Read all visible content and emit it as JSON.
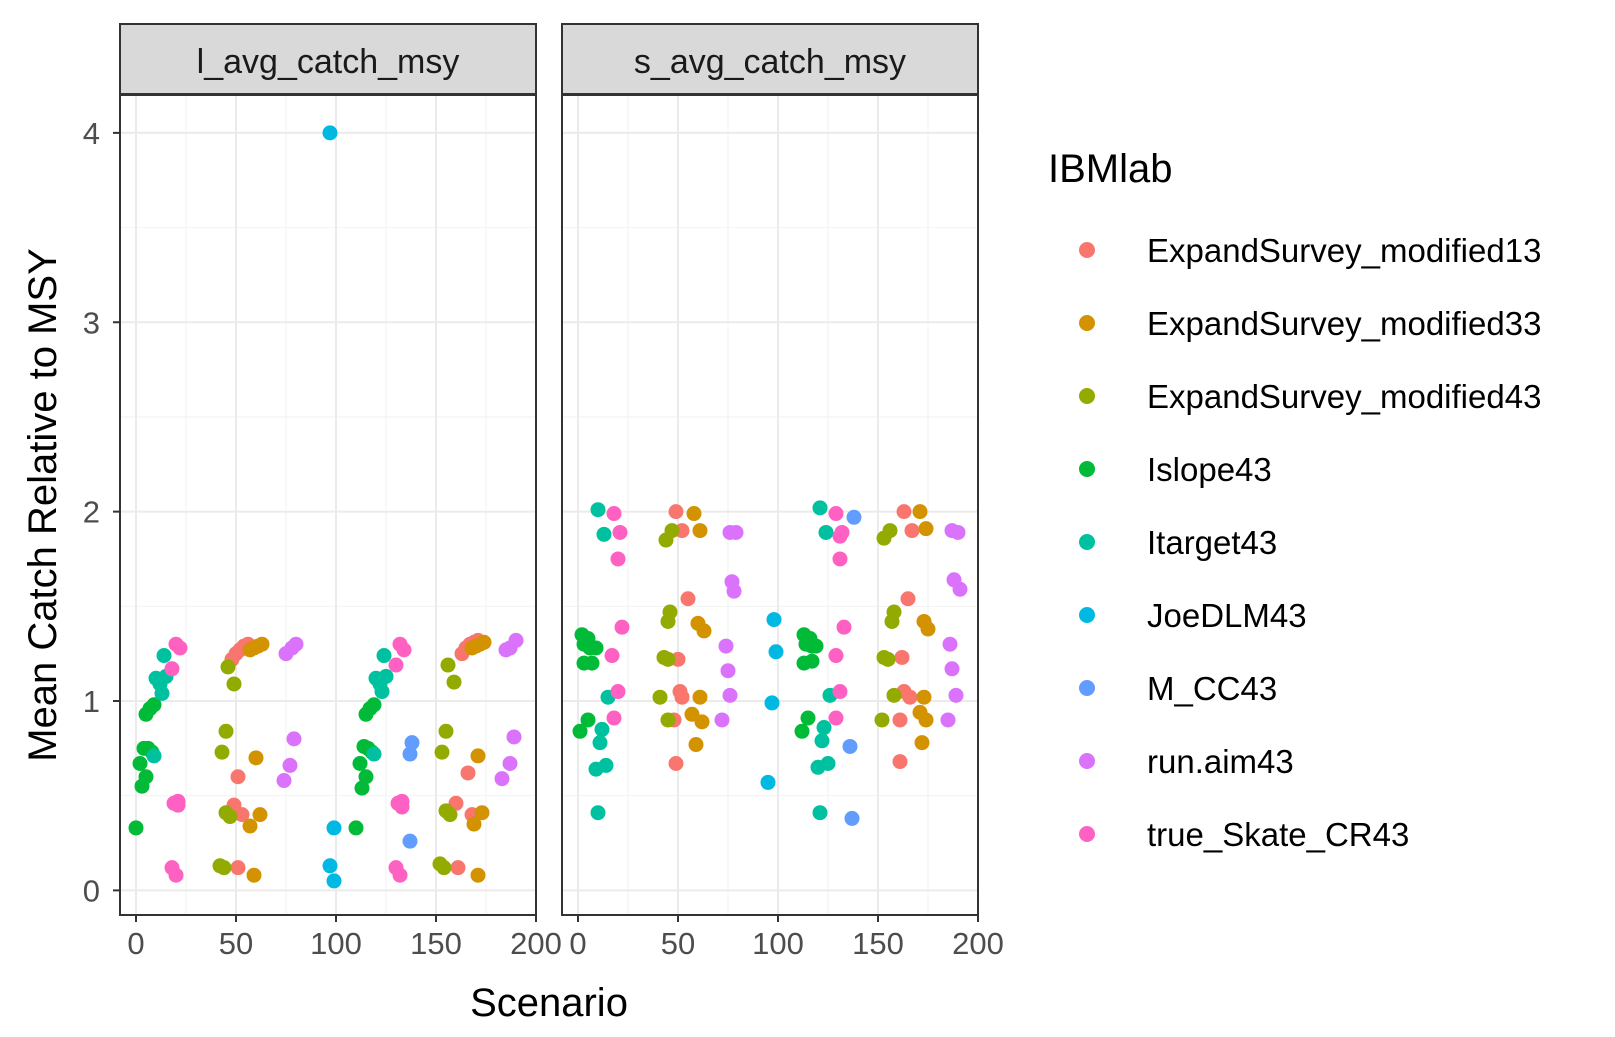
{
  "chart_data": {
    "type": "scatter",
    "xlabel": "Scenario",
    "ylabel": "Mean Catch Relative to MSY",
    "xlim": [
      -8,
      200
    ],
    "ylim": [
      -0.13,
      4.2
    ],
    "x_ticks": [
      0,
      50,
      100,
      150,
      200
    ],
    "x_tick_labels": [
      "0",
      "50",
      "100",
      "150",
      "200"
    ],
    "y_ticks": [
      0,
      1,
      2,
      3,
      4
    ],
    "y_tick_labels": [
      "0",
      "1",
      "2",
      "3",
      "4"
    ],
    "grid": true,
    "facets": [
      "l_avg_catch_msy",
      "s_avg_catch_msy"
    ],
    "legend": {
      "title": "IBMlab",
      "position": "right",
      "entries": [
        {
          "name": "ExpandSurvey_modified13",
          "color": "#F8766D"
        },
        {
          "name": "ExpandSurvey_modified33",
          "color": "#D39200"
        },
        {
          "name": "ExpandSurvey_modified43",
          "color": "#93AA00"
        },
        {
          "name": "Islope43",
          "color": "#00BA38"
        },
        {
          "name": "Itarget43",
          "color": "#00C19F"
        },
        {
          "name": "JoeDLM43",
          "color": "#00B9E3"
        },
        {
          "name": "M_CC43",
          "color": "#619CFF"
        },
        {
          "name": "run.aim43",
          "color": "#DB72FB"
        },
        {
          "name": "true_Skate_CR43",
          "color": "#FF61C3"
        }
      ]
    },
    "series": [
      {
        "name": "ExpandSurvey_modified13",
        "facet": "l_avg_catch_msy",
        "x": [
          48,
          50,
          52,
          54,
          56,
          51,
          53,
          49,
          51,
          163,
          165,
          167,
          169,
          171,
          166,
          160,
          168,
          161
        ],
        "y": [
          1.22,
          1.25,
          1.27,
          1.29,
          1.3,
          0.6,
          0.4,
          0.45,
          0.12,
          1.25,
          1.28,
          1.3,
          1.31,
          1.32,
          0.62,
          0.46,
          0.4,
          0.12
        ]
      },
      {
        "name": "ExpandSurvey_modified33",
        "facet": "l_avg_catch_msy",
        "x": [
          57,
          59,
          61,
          63,
          60,
          62,
          57,
          59,
          168,
          170,
          172,
          174,
          171,
          173,
          169,
          171
        ],
        "y": [
          1.27,
          1.28,
          1.29,
          1.3,
          0.7,
          0.4,
          0.34,
          0.08,
          1.28,
          1.29,
          1.3,
          1.31,
          0.71,
          0.41,
          0.35,
          0.08
        ]
      },
      {
        "name": "ExpandSurvey_modified43",
        "facet": "l_avg_catch_msy",
        "x": [
          46,
          49,
          43,
          45,
          45,
          47,
          42,
          44,
          156,
          159,
          153,
          155,
          155,
          157,
          152,
          154
        ],
        "y": [
          1.18,
          1.09,
          0.73,
          0.84,
          0.41,
          0.39,
          0.13,
          0.12,
          1.19,
          1.1,
          0.73,
          0.84,
          0.42,
          0.4,
          0.14,
          0.12
        ]
      },
      {
        "name": "Islope43",
        "facet": "l_avg_catch_msy",
        "x": [
          5,
          7,
          9,
          4,
          6,
          8,
          2,
          5,
          3,
          0,
          115,
          117,
          119,
          114,
          116,
          118,
          112,
          115,
          113,
          110
        ],
        "y": [
          0.93,
          0.96,
          0.98,
          0.75,
          0.75,
          0.73,
          0.67,
          0.6,
          0.55,
          0.33,
          0.93,
          0.96,
          0.98,
          0.76,
          0.75,
          0.73,
          0.67,
          0.6,
          0.54,
          0.33
        ]
      },
      {
        "name": "Itarget43",
        "facet": "l_avg_catch_msy",
        "x": [
          14,
          10,
          15,
          12,
          13,
          9,
          124,
          120,
          125,
          122,
          123,
          119
        ],
        "y": [
          1.24,
          1.12,
          1.13,
          1.09,
          1.04,
          0.71,
          1.24,
          1.12,
          1.13,
          1.09,
          1.05,
          0.72
        ]
      },
      {
        "name": "JoeDLM43",
        "facet": "l_avg_catch_msy",
        "x": [
          97,
          99,
          97,
          99
        ],
        "y": [
          4.0,
          0.33,
          0.13,
          0.05
        ]
      },
      {
        "name": "M_CC43",
        "facet": "l_avg_catch_msy",
        "x": [
          138,
          137,
          137
        ],
        "y": [
          0.78,
          0.72,
          0.26
        ]
      },
      {
        "name": "run.aim43",
        "facet": "l_avg_catch_msy",
        "x": [
          78,
          80,
          75,
          79,
          77,
          74,
          187,
          190,
          185,
          189,
          187,
          183
        ],
        "y": [
          1.28,
          1.3,
          1.25,
          0.8,
          0.66,
          0.58,
          1.28,
          1.32,
          1.27,
          0.81,
          0.67,
          0.59
        ]
      },
      {
        "name": "true_Skate_CR43",
        "facet": "l_avg_catch_msy",
        "x": [
          20,
          22,
          18,
          21,
          19,
          21,
          18,
          20,
          132,
          134,
          130,
          133,
          131,
          133,
          130,
          132
        ],
        "y": [
          1.3,
          1.28,
          1.17,
          0.47,
          0.46,
          0.45,
          0.12,
          0.08,
          1.3,
          1.27,
          1.19,
          0.47,
          0.46,
          0.44,
          0.12,
          0.08
        ]
      },
      {
        "name": "ExpandSurvey_modified13",
        "facet": "s_avg_catch_msy",
        "x": [
          49,
          52,
          55,
          50,
          51,
          52,
          48,
          49,
          163,
          167,
          165,
          162,
          161,
          163,
          166,
          161
        ],
        "y": [
          2.0,
          1.9,
          1.54,
          1.22,
          1.05,
          1.02,
          0.9,
          0.67,
          2.0,
          1.9,
          1.54,
          1.23,
          0.9,
          1.05,
          1.02,
          0.68
        ]
      },
      {
        "name": "ExpandSurvey_modified33",
        "facet": "s_avg_catch_msy",
        "x": [
          58,
          61,
          60,
          63,
          61,
          57,
          62,
          59,
          171,
          174,
          173,
          175,
          173,
          171,
          174,
          172
        ],
        "y": [
          1.99,
          1.9,
          1.41,
          1.37,
          1.02,
          0.93,
          0.89,
          0.77,
          2.0,
          1.91,
          1.42,
          1.38,
          1.02,
          0.94,
          0.9,
          0.78
        ]
      },
      {
        "name": "ExpandSurvey_modified43",
        "facet": "s_avg_catch_msy",
        "x": [
          44,
          47,
          46,
          45,
          43,
          45,
          41,
          45,
          153,
          156,
          158,
          157,
          153,
          155,
          158,
          152
        ],
        "y": [
          1.85,
          1.9,
          1.47,
          1.42,
          1.23,
          1.22,
          1.02,
          0.9,
          1.86,
          1.9,
          1.47,
          1.42,
          1.23,
          1.22,
          1.03,
          0.9
        ]
      },
      {
        "name": "Islope43",
        "facet": "s_avg_catch_msy",
        "x": [
          2,
          5,
          3,
          6,
          9,
          3,
          7,
          5,
          1,
          113,
          116,
          114,
          117,
          119,
          113,
          117,
          115,
          112
        ],
        "y": [
          1.35,
          1.33,
          1.3,
          1.28,
          1.28,
          1.2,
          1.2,
          0.9,
          0.84,
          1.35,
          1.33,
          1.3,
          1.29,
          1.29,
          1.2,
          1.21,
          0.91,
          0.84
        ]
      },
      {
        "name": "Itarget43",
        "facet": "s_avg_catch_msy",
        "x": [
          10,
          13,
          15,
          12,
          11,
          14,
          9,
          10,
          121,
          124,
          126,
          123,
          122,
          125,
          120,
          121
        ],
        "y": [
          2.01,
          1.88,
          1.02,
          0.85,
          0.78,
          0.66,
          0.64,
          0.41,
          2.02,
          1.89,
          1.03,
          0.86,
          0.79,
          0.67,
          0.65,
          0.41
        ]
      },
      {
        "name": "JoeDLM43",
        "facet": "s_avg_catch_msy",
        "x": [
          98,
          99,
          97,
          95
        ],
        "y": [
          1.43,
          1.26,
          0.99,
          0.57
        ]
      },
      {
        "name": "M_CC43",
        "facet": "s_avg_catch_msy",
        "x": [
          138,
          136,
          137
        ],
        "y": [
          1.97,
          0.76,
          0.38
        ]
      },
      {
        "name": "run.aim43",
        "facet": "s_avg_catch_msy",
        "x": [
          76,
          79,
          77,
          78,
          74,
          75,
          76,
          72,
          187,
          190,
          188,
          191,
          186,
          187,
          189,
          185
        ],
        "y": [
          1.89,
          1.89,
          1.63,
          1.58,
          1.29,
          1.16,
          1.03,
          0.9,
          1.9,
          1.89,
          1.64,
          1.59,
          1.3,
          1.17,
          1.03,
          0.9
        ]
      },
      {
        "name": "true_Skate_CR43",
        "facet": "s_avg_catch_msy",
        "x": [
          18,
          21,
          20,
          22,
          17,
          20,
          18,
          129,
          132,
          131,
          133,
          129,
          131,
          129,
          131
        ],
        "y": [
          1.99,
          1.89,
          1.75,
          1.39,
          1.24,
          1.05,
          0.91,
          1.99,
          1.89,
          1.75,
          1.39,
          1.24,
          1.05,
          0.91,
          1.87
        ]
      }
    ]
  }
}
